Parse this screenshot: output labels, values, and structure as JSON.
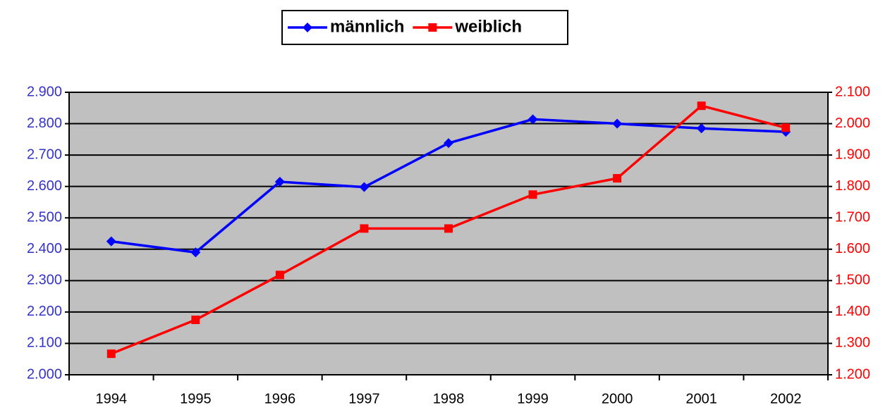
{
  "chart_data": {
    "type": "line",
    "categories": [
      "1994",
      "1995",
      "1996",
      "1997",
      "1998",
      "1999",
      "2000",
      "2001",
      "2002"
    ],
    "series": [
      {
        "name": "männlich",
        "color": "#0000ff",
        "marker": "diamond",
        "axis": "y",
        "values": [
          2425,
          2390,
          2615,
          2598,
          2738,
          2814,
          2800,
          2785,
          2774
        ]
      },
      {
        "name": "weiblich",
        "color": "#ff0000",
        "marker": "square",
        "axis": "y2",
        "values": [
          1267,
          1375,
          1518,
          1666,
          1666,
          1774,
          1826,
          2057,
          1987
        ]
      }
    ],
    "ylim": [
      2000,
      2900
    ],
    "yticks": [
      {
        "value": 2000,
        "label": "2.000"
      },
      {
        "value": 2100,
        "label": "2.100"
      },
      {
        "value": 2200,
        "label": "2.200"
      },
      {
        "value": 2300,
        "label": "2.300"
      },
      {
        "value": 2400,
        "label": "2.400"
      },
      {
        "value": 2500,
        "label": "2.500"
      },
      {
        "value": 2600,
        "label": "2.600"
      },
      {
        "value": 2700,
        "label": "2.700"
      },
      {
        "value": 2800,
        "label": "2.800"
      },
      {
        "value": 2900,
        "label": "2.900"
      }
    ],
    "y2lim": [
      1200,
      2100
    ],
    "y2ticks": [
      {
        "value": 1200,
        "label": "1.200"
      },
      {
        "value": 1300,
        "label": "1.300"
      },
      {
        "value": 1400,
        "label": "1.400"
      },
      {
        "value": 1500,
        "label": "1.500"
      },
      {
        "value": 1600,
        "label": "1.600"
      },
      {
        "value": 1700,
        "label": "1.700"
      },
      {
        "value": 1800,
        "label": "1.800"
      },
      {
        "value": 1900,
        "label": "1.900"
      },
      {
        "value": 2000,
        "label": "2.000"
      },
      {
        "value": 2100,
        "label": "2.100"
      }
    ],
    "ycolor": "#3333cc",
    "y2color": "#ff0000",
    "grid": true,
    "background": "#c0c0c0",
    "legend": "top"
  }
}
